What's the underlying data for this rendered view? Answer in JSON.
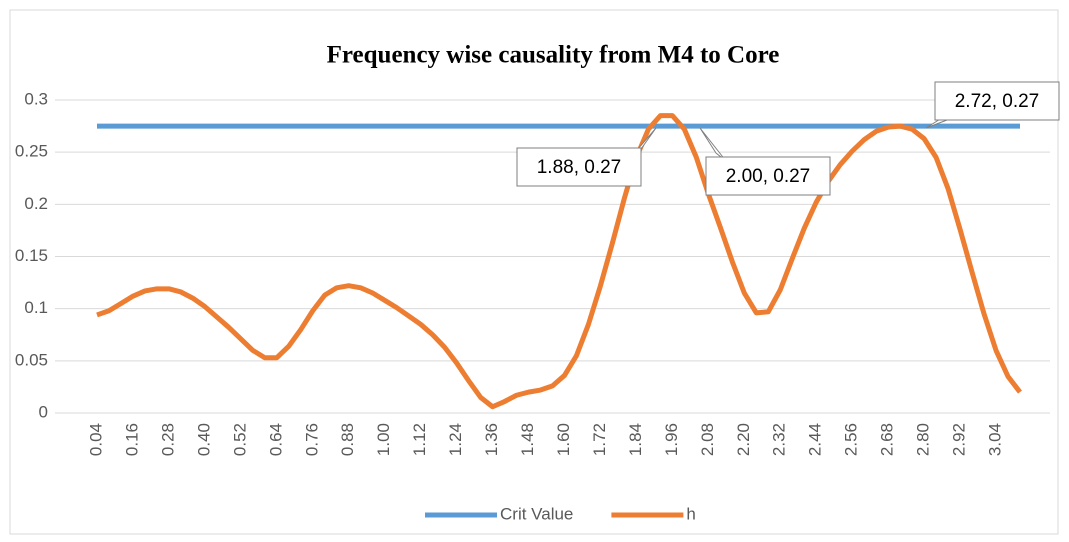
{
  "chart_data": {
    "type": "line",
    "title": "Frequency wise causality from M4 to Core",
    "categories": [
      "0.04",
      null,
      null,
      "0.16",
      null,
      null,
      "0.28",
      null,
      null,
      "0.40",
      null,
      null,
      "0.52",
      null,
      null,
      "0.64",
      null,
      null,
      "0.76",
      null,
      null,
      "0.88",
      null,
      null,
      "1.00",
      null,
      null,
      "1.12",
      null,
      null,
      "1.24",
      null,
      null,
      "1.36",
      null,
      null,
      "1.48",
      null,
      null,
      "1.60",
      null,
      null,
      "1.72",
      null,
      null,
      "1.84",
      null,
      null,
      "1.96",
      null,
      null,
      "2.08",
      null,
      null,
      "2.20",
      null,
      null,
      "2.32",
      null,
      null,
      "2.44",
      null,
      null,
      "2.56",
      null,
      null,
      "2.68",
      null,
      null,
      "2.80",
      null,
      null,
      "2.92",
      null,
      null,
      "3.04",
      null,
      null
    ],
    "series": [
      {
        "name": "Crit Value",
        "color": "#5b9bd5",
        "values": [
          0.275,
          0.275,
          0.275,
          0.275,
          0.275,
          0.275,
          0.275,
          0.275,
          0.275,
          0.275,
          0.275,
          0.275,
          0.275,
          0.275,
          0.275,
          0.275,
          0.275,
          0.275,
          0.275,
          0.275,
          0.275,
          0.275,
          0.275,
          0.275,
          0.275,
          0.275,
          0.275,
          0.275,
          0.275,
          0.275,
          0.275,
          0.275,
          0.275,
          0.275,
          0.275,
          0.275,
          0.275,
          0.275,
          0.275,
          0.275,
          0.275,
          0.275,
          0.275,
          0.275,
          0.275,
          0.275,
          0.275,
          0.275,
          0.275,
          0.275,
          0.275,
          0.275,
          0.275,
          0.275,
          0.275,
          0.275,
          0.275,
          0.275,
          0.275,
          0.275,
          0.275,
          0.275,
          0.275,
          0.275,
          0.275,
          0.275,
          0.275,
          0.275,
          0.275,
          0.275,
          0.275,
          0.275,
          0.275,
          0.275,
          0.275,
          0.275,
          0.275,
          0.275
        ]
      },
      {
        "name": "h",
        "color": "#ed7d31",
        "values": [
          0.094,
          0.098,
          0.105,
          0.112,
          0.117,
          0.119,
          0.119,
          0.116,
          0.11,
          0.102,
          0.092,
          0.082,
          0.071,
          0.06,
          0.053,
          0.053,
          0.064,
          0.08,
          0.098,
          0.113,
          0.12,
          0.122,
          0.12,
          0.115,
          0.108,
          0.101,
          0.093,
          0.085,
          0.075,
          0.063,
          0.048,
          0.031,
          0.015,
          0.006,
          0.011,
          0.017,
          0.02,
          0.022,
          0.026,
          0.036,
          0.055,
          0.085,
          0.122,
          0.163,
          0.206,
          0.245,
          0.272,
          0.285,
          0.285,
          0.272,
          0.245,
          0.21,
          0.178,
          0.145,
          0.115,
          0.096,
          0.097,
          0.118,
          0.148,
          0.177,
          0.202,
          0.222,
          0.238,
          0.251,
          0.262,
          0.27,
          0.274,
          0.275,
          0.272,
          0.263,
          0.245,
          0.215,
          0.176,
          0.135,
          0.095,
          0.06,
          0.035,
          0.02
        ]
      }
    ],
    "ylim": [
      0,
      0.3
    ],
    "yticks": [
      0,
      0.05,
      0.1,
      0.15,
      0.2,
      0.25,
      0.3
    ],
    "grid": true,
    "legend": "bottom",
    "annotations": [
      "1.88, 0.27",
      "2.00, 0.27",
      "2.72, 0.27"
    ]
  }
}
